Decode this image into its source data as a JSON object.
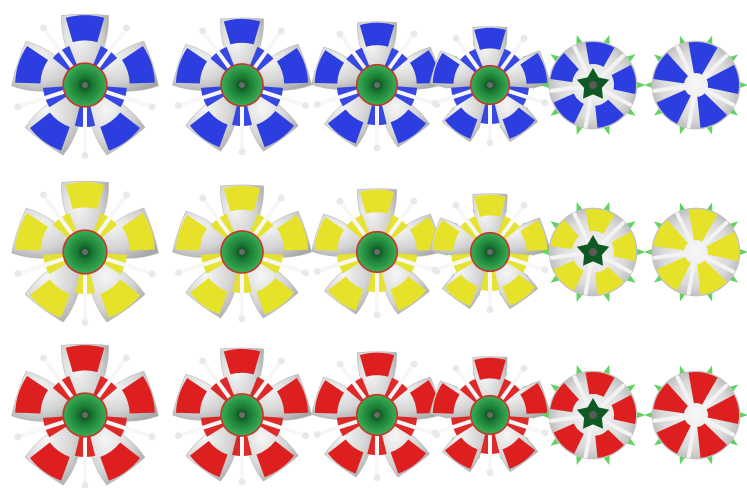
{
  "palette": {
    "petal_light": "#f2f2f2",
    "petal_mid": "#d2d2d2",
    "petal_dark": "#a9a9a9",
    "spoke": "#f7f7f7",
    "center_green": "#2e9c45",
    "center_dark": "#0e5a22",
    "center_ring": "#c0392b",
    "sepal_green": "#5fd35f"
  },
  "rows": [
    {
      "name": "blue",
      "color": "#2d3ee0"
    },
    {
      "name": "yellow",
      "color": "#e6e22a"
    },
    {
      "name": "red",
      "color": "#dd1f1f"
    }
  ],
  "stages": [
    {
      "stage": 1,
      "petal_count": 5,
      "openness": 1.0,
      "has_sepals": false
    },
    {
      "stage": 2,
      "petal_count": 5,
      "openness": 0.85,
      "has_sepals": false
    },
    {
      "stage": 3,
      "petal_count": 5,
      "openness": 0.7,
      "has_sepals": false
    },
    {
      "stage": 4,
      "petal_count": 5,
      "openness": 0.5,
      "has_sepals": true
    },
    {
      "stage": 5,
      "petal_count": 5,
      "openness": 0.3,
      "has_sepals": true
    },
    {
      "stage": 6,
      "petal_count": 5,
      "openness": 0.0,
      "has_sepals": true
    }
  ]
}
